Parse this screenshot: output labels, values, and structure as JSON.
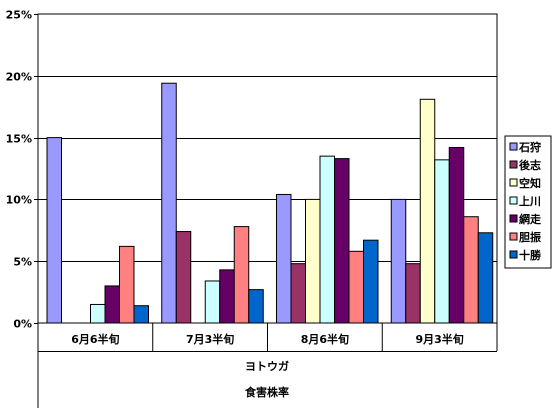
{
  "chart_data": {
    "type": "bar",
    "categories": [
      "6月6半旬",
      "7月3半旬",
      "8月6半旬",
      "9月3半旬"
    ],
    "group_label": "ヨトウガ",
    "xlabel": "食害株率",
    "ylim": [
      0,
      25
    ],
    "yticks": [
      "0%",
      "5%",
      "10%",
      "15%",
      "20%",
      "25%"
    ],
    "ytick_values": [
      0,
      5,
      10,
      15,
      20,
      25
    ],
    "grid": true,
    "legend_position": "right",
    "series": [
      {
        "name": "石狩",
        "color": "#9999ff",
        "values": [
          15.0,
          19.4,
          10.4,
          10.0
        ]
      },
      {
        "name": "後志",
        "color": "#993366",
        "values": [
          0,
          7.4,
          4.8,
          4.8
        ]
      },
      {
        "name": "空知",
        "color": "#ffffcc",
        "values": [
          0,
          0,
          10.0,
          18.1
        ]
      },
      {
        "name": "上川",
        "color": "#ccffff",
        "values": [
          1.5,
          3.4,
          13.5,
          13.2
        ]
      },
      {
        "name": "網走",
        "color": "#660066",
        "values": [
          3.0,
          4.3,
          13.3,
          14.2
        ]
      },
      {
        "name": "胆振",
        "color": "#ff8080",
        "values": [
          6.2,
          7.8,
          5.8,
          8.6
        ]
      },
      {
        "name": "十勝",
        "color": "#0066cc",
        "values": [
          1.4,
          2.7,
          6.7,
          7.3
        ]
      }
    ]
  }
}
